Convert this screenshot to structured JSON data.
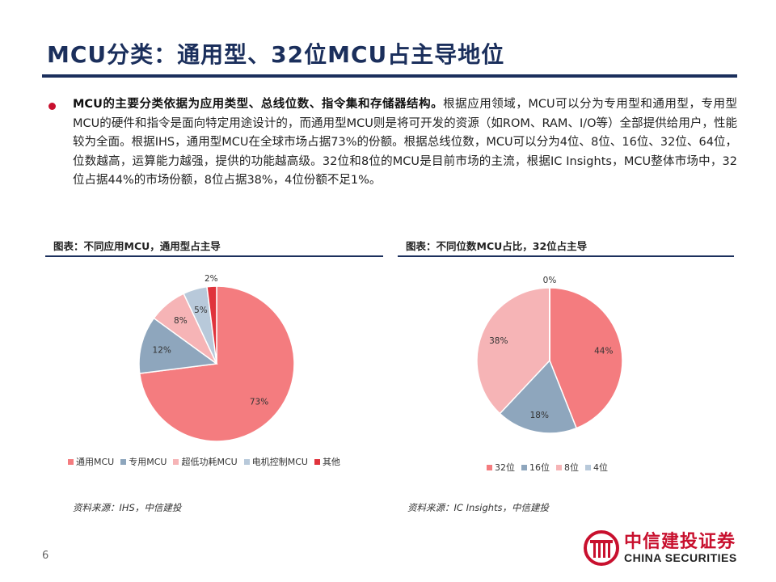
{
  "header": {
    "title": "MCU分类：通用型、32位MCU占主导地位"
  },
  "body": {
    "bold_lead": "MCU的主要分类依据为应用类型、总线位数、指令集和存储器结构。",
    "text": "根据应用领域，MCU可以分为专用型和通用型，专用型MCU的硬件和指令是面向特定用途设计的，而通用型MCU则是将可开发的资源（如ROM、RAM、I/O等）全部提供给用户，性能较为全面。根据IHS，通用型MCU在全球市场占据73%的份额。根据总线位数，MCU可以分为4位、8位、16位、32位、64位，位数越高，运算能力越强，提供的功能越高级。32位和8位的MCU是目前市场的主流，根据IC Insights，MCU整体市场中，32位占据44%的市场份额，8位占据38%，4位份额不足1%。"
  },
  "chart_data": [
    {
      "type": "pie",
      "title": "图表：不同应用MCU，通用型占主导",
      "categories": [
        "通用MCU",
        "专用MCU",
        "超低功耗MCU",
        "电机控制MCU",
        "其他"
      ],
      "values": [
        73,
        12,
        8,
        5,
        2
      ],
      "labels": [
        "73%",
        "12%",
        "8%",
        "5%",
        "2%"
      ],
      "colors": [
        "#f47c7f",
        "#8ea6bd",
        "#f6b4b6",
        "#b8c9da",
        "#e0333c"
      ],
      "source": "资料来源：IHS，中信建投"
    },
    {
      "type": "pie",
      "title": "图表：不同位数MCU占比，32位占主导",
      "categories": [
        "32位",
        "16位",
        "8位",
        "4位"
      ],
      "values": [
        44,
        18,
        38,
        0
      ],
      "labels": [
        "44%",
        "18%",
        "38%",
        "0%"
      ],
      "colors": [
        "#f47c7f",
        "#8ea6bd",
        "#f6b4b6",
        "#b8c9da"
      ],
      "source": "资料来源：IC Insights，中信建投"
    }
  ],
  "footer": {
    "page_number": "6",
    "logo_cn": "中信建投证券",
    "logo_en": "CHINA SECURITIES"
  }
}
